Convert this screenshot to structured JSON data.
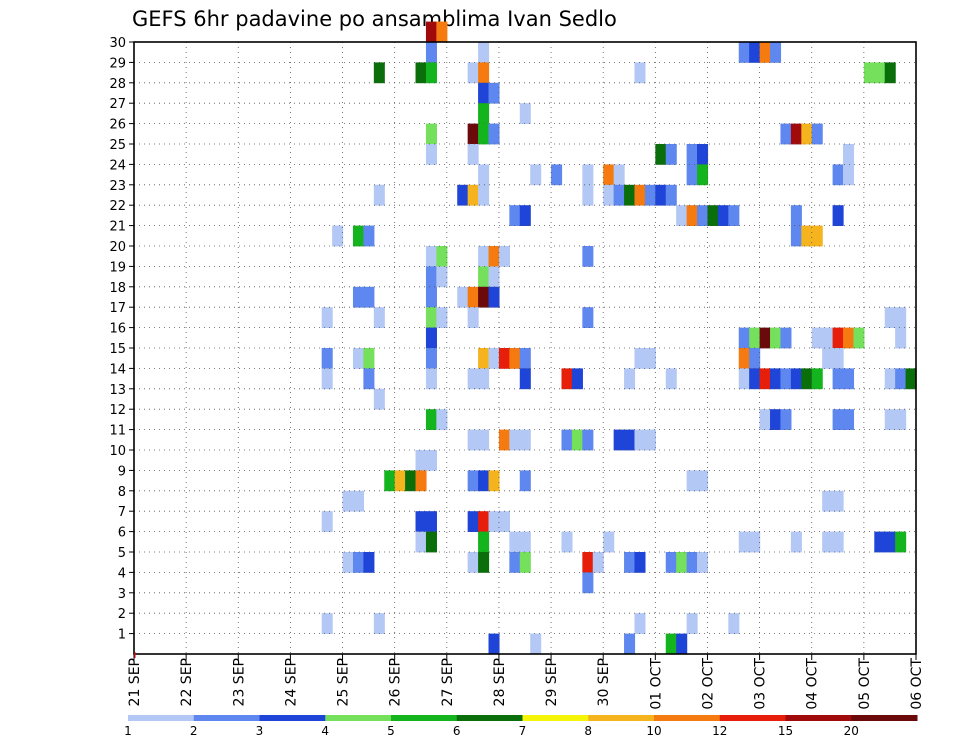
{
  "chart_data": {
    "type": "heatmap",
    "title": "GEFS 6hr padavine po ansamblima Ivan Sedlo",
    "xlabel": "",
    "ylabel": "",
    "y_ticks": [
      "1",
      "2",
      "3",
      "4",
      "5",
      "6",
      "7",
      "8",
      "9",
      "10",
      "11",
      "12",
      "13",
      "14",
      "15",
      "16",
      "17",
      "18",
      "19",
      "20",
      "21",
      "22",
      "23",
      "24",
      "25",
      "26",
      "27",
      "28",
      "29",
      "30"
    ],
    "x_ticks": [
      "21 SEP",
      "22 SEP",
      "23 SEP",
      "24 SEP",
      "25 SEP",
      "26 SEP",
      "27 SEP",
      "28 SEP",
      "29 SEP",
      "30 SEP",
      "01 OCT",
      "02 OCT",
      "03 OCT",
      "04 OCT",
      "05 OCT",
      "06 OCT"
    ],
    "x_range_days": [
      0,
      15
    ],
    "y_range": [
      0,
      30
    ],
    "grid": true,
    "legend": {
      "position": "bottom",
      "labels": [
        "1",
        "2",
        "3",
        "4",
        "5",
        "6",
        "7",
        "8",
        "10",
        "12",
        "15",
        "20"
      ],
      "colors": [
        "#b4c8f5",
        "#5f87f0",
        "#1e44d8",
        "#74e05c",
        "#14b41e",
        "#0a6e0a",
        "#f5f50a",
        "#f5b41e",
        "#f57a10",
        "#e61e0a",
        "#a00a0a",
        "#6a0a0a"
      ]
    },
    "cells": [
      {
        "m": 30,
        "d": 5.6,
        "v": 15
      },
      {
        "m": 30,
        "d": 5.8,
        "v": 10
      },
      {
        "m": 29,
        "d": 5.6,
        "v": 2
      },
      {
        "m": 29,
        "d": 6.6,
        "v": 1
      },
      {
        "m": 29,
        "d": 11.6,
        "v": 2
      },
      {
        "m": 29,
        "d": 11.8,
        "v": 3
      },
      {
        "m": 29,
        "d": 12.0,
        "v": 10
      },
      {
        "m": 29,
        "d": 12.2,
        "v": 2
      },
      {
        "m": 28,
        "d": 4.6,
        "v": 6
      },
      {
        "m": 28,
        "d": 5.4,
        "v": 6
      },
      {
        "m": 28,
        "d": 5.6,
        "v": 5
      },
      {
        "m": 28,
        "d": 6.4,
        "v": 1
      },
      {
        "m": 28,
        "d": 6.6,
        "v": 10
      },
      {
        "m": 28,
        "d": 9.6,
        "v": 1
      },
      {
        "m": 28,
        "d": 14.0,
        "v": 4
      },
      {
        "m": 28,
        "d": 14.2,
        "v": 4
      },
      {
        "m": 28,
        "d": 14.4,
        "v": 6
      },
      {
        "m": 27,
        "d": 6.6,
        "v": 3
      },
      {
        "m": 27,
        "d": 6.8,
        "v": 2
      },
      {
        "m": 26,
        "d": 6.6,
        "v": 5
      },
      {
        "m": 26,
        "d": 7.4,
        "v": 1
      },
      {
        "m": 25,
        "d": 5.6,
        "v": 4
      },
      {
        "m": 25,
        "d": 6.4,
        "v": 20
      },
      {
        "m": 25,
        "d": 6.6,
        "v": 5
      },
      {
        "m": 25,
        "d": 6.8,
        "v": 2
      },
      {
        "m": 25,
        "d": 12.4,
        "v": 2
      },
      {
        "m": 25,
        "d": 12.6,
        "v": 15
      },
      {
        "m": 25,
        "d": 12.8,
        "v": 8
      },
      {
        "m": 25,
        "d": 13.0,
        "v": 2
      },
      {
        "m": 24,
        "d": 5.6,
        "v": 1
      },
      {
        "m": 24,
        "d": 6.4,
        "v": 1
      },
      {
        "m": 24,
        "d": 10.0,
        "v": 6
      },
      {
        "m": 24,
        "d": 10.2,
        "v": 2
      },
      {
        "m": 24,
        "d": 10.6,
        "v": 2
      },
      {
        "m": 24,
        "d": 10.8,
        "v": 3
      },
      {
        "m": 24,
        "d": 13.6,
        "v": 1
      },
      {
        "m": 23,
        "d": 6.6,
        "v": 1
      },
      {
        "m": 23,
        "d": 7.6,
        "v": 1
      },
      {
        "m": 23,
        "d": 8.0,
        "v": 2
      },
      {
        "m": 23,
        "d": 8.6,
        "v": 1
      },
      {
        "m": 23,
        "d": 9.0,
        "v": 10
      },
      {
        "m": 23,
        "d": 9.2,
        "v": 1
      },
      {
        "m": 23,
        "d": 10.6,
        "v": 2
      },
      {
        "m": 23,
        "d": 10.8,
        "v": 5
      },
      {
        "m": 23,
        "d": 13.4,
        "v": 2
      },
      {
        "m": 23,
        "d": 13.6,
        "v": 1
      },
      {
        "m": 22,
        "d": 4.6,
        "v": 1
      },
      {
        "m": 22,
        "d": 6.2,
        "v": 3
      },
      {
        "m": 22,
        "d": 6.4,
        "v": 8
      },
      {
        "m": 22,
        "d": 6.6,
        "v": 1
      },
      {
        "m": 22,
        "d": 8.6,
        "v": 1
      },
      {
        "m": 22,
        "d": 9.0,
        "v": 1
      },
      {
        "m": 22,
        "d": 9.2,
        "v": 2
      },
      {
        "m": 22,
        "d": 9.4,
        "v": 6
      },
      {
        "m": 22,
        "d": 9.6,
        "v": 10
      },
      {
        "m": 22,
        "d": 9.8,
        "v": 2
      },
      {
        "m": 22,
        "d": 10.0,
        "v": 3
      },
      {
        "m": 22,
        "d": 10.2,
        "v": 2
      },
      {
        "m": 21,
        "d": 7.2,
        "v": 2
      },
      {
        "m": 21,
        "d": 7.4,
        "v": 3
      },
      {
        "m": 21,
        "d": 10.4,
        "v": 1
      },
      {
        "m": 21,
        "d": 10.6,
        "v": 10
      },
      {
        "m": 21,
        "d": 10.8,
        "v": 2
      },
      {
        "m": 21,
        "d": 11.0,
        "v": 6
      },
      {
        "m": 21,
        "d": 11.2,
        "v": 3
      },
      {
        "m": 21,
        "d": 11.4,
        "v": 2
      },
      {
        "m": 21,
        "d": 12.6,
        "v": 2
      },
      {
        "m": 21,
        "d": 13.4,
        "v": 3
      },
      {
        "m": 20,
        "d": 3.8,
        "v": 1
      },
      {
        "m": 20,
        "d": 4.2,
        "v": 5
      },
      {
        "m": 20,
        "d": 4.4,
        "v": 2
      },
      {
        "m": 20,
        "d": 12.6,
        "v": 2
      },
      {
        "m": 20,
        "d": 12.8,
        "v": 8
      },
      {
        "m": 20,
        "d": 13.0,
        "v": 8
      },
      {
        "m": 19,
        "d": 5.6,
        "v": 1
      },
      {
        "m": 19,
        "d": 5.8,
        "v": 4
      },
      {
        "m": 19,
        "d": 6.6,
        "v": 1
      },
      {
        "m": 19,
        "d": 6.8,
        "v": 10
      },
      {
        "m": 19,
        "d": 7.0,
        "v": 1
      },
      {
        "m": 19,
        "d": 8.6,
        "v": 2
      },
      {
        "m": 18,
        "d": 5.6,
        "v": 2
      },
      {
        "m": 18,
        "d": 5.8,
        "v": 1
      },
      {
        "m": 18,
        "d": 6.6,
        "v": 4
      },
      {
        "m": 18,
        "d": 6.8,
        "v": 1
      },
      {
        "m": 17,
        "d": 4.2,
        "v": 2
      },
      {
        "m": 17,
        "d": 4.4,
        "v": 2
      },
      {
        "m": 17,
        "d": 5.6,
        "v": 2
      },
      {
        "m": 17,
        "d": 6.2,
        "v": 1
      },
      {
        "m": 17,
        "d": 6.4,
        "v": 10
      },
      {
        "m": 17,
        "d": 6.6,
        "v": 20
      },
      {
        "m": 17,
        "d": 6.8,
        "v": 3
      },
      {
        "m": 16,
        "d": 3.6,
        "v": 1
      },
      {
        "m": 16,
        "d": 4.6,
        "v": 1
      },
      {
        "m": 16,
        "d": 5.6,
        "v": 4
      },
      {
        "m": 16,
        "d": 5.8,
        "v": 1
      },
      {
        "m": 16,
        "d": 6.4,
        "v": 1
      },
      {
        "m": 16,
        "d": 8.6,
        "v": 2
      },
      {
        "m": 16,
        "d": 14.4,
        "v": 1
      },
      {
        "m": 16,
        "d": 14.6,
        "v": 1
      },
      {
        "m": 15,
        "d": 5.6,
        "v": 3
      },
      {
        "m": 15,
        "d": 11.6,
        "v": 2
      },
      {
        "m": 15,
        "d": 11.8,
        "v": 4
      },
      {
        "m": 15,
        "d": 12.0,
        "v": 20
      },
      {
        "m": 15,
        "d": 12.2,
        "v": 4
      },
      {
        "m": 15,
        "d": 12.4,
        "v": 2
      },
      {
        "m": 15,
        "d": 13.0,
        "v": 1
      },
      {
        "m": 15,
        "d": 13.2,
        "v": 1
      },
      {
        "m": 15,
        "d": 13.4,
        "v": 12
      },
      {
        "m": 15,
        "d": 13.6,
        "v": 10
      },
      {
        "m": 15,
        "d": 13.8,
        "v": 4
      },
      {
        "m": 15,
        "d": 14.6,
        "v": 1
      },
      {
        "m": 14,
        "d": 3.6,
        "v": 2
      },
      {
        "m": 14,
        "d": 4.2,
        "v": 1
      },
      {
        "m": 14,
        "d": 4.4,
        "v": 4
      },
      {
        "m": 14,
        "d": 5.6,
        "v": 2
      },
      {
        "m": 14,
        "d": 6.6,
        "v": 8
      },
      {
        "m": 14,
        "d": 6.8,
        "v": 1
      },
      {
        "m": 14,
        "d": 7.0,
        "v": 12
      },
      {
        "m": 14,
        "d": 7.2,
        "v": 10
      },
      {
        "m": 14,
        "d": 7.4,
        "v": 2
      },
      {
        "m": 14,
        "d": 9.6,
        "v": 1
      },
      {
        "m": 14,
        "d": 9.8,
        "v": 1
      },
      {
        "m": 14,
        "d": 11.6,
        "v": 10
      },
      {
        "m": 14,
        "d": 11.8,
        "v": 2
      },
      {
        "m": 14,
        "d": 13.2,
        "v": 1
      },
      {
        "m": 14,
        "d": 13.4,
        "v": 1
      },
      {
        "m": 13,
        "d": 3.6,
        "v": 1
      },
      {
        "m": 13,
        "d": 4.4,
        "v": 2
      },
      {
        "m": 13,
        "d": 5.6,
        "v": 1
      },
      {
        "m": 13,
        "d": 6.4,
        "v": 1
      },
      {
        "m": 13,
        "d": 6.6,
        "v": 1
      },
      {
        "m": 13,
        "d": 7.4,
        "v": 3
      },
      {
        "m": 13,
        "d": 8.2,
        "v": 12
      },
      {
        "m": 13,
        "d": 8.4,
        "v": 3
      },
      {
        "m": 13,
        "d": 9.4,
        "v": 1
      },
      {
        "m": 13,
        "d": 10.2,
        "v": 1
      },
      {
        "m": 13,
        "d": 11.6,
        "v": 1
      },
      {
        "m": 13,
        "d": 11.8,
        "v": 3
      },
      {
        "m": 13,
        "d": 12.0,
        "v": 12
      },
      {
        "m": 13,
        "d": 12.2,
        "v": 3
      },
      {
        "m": 13,
        "d": 12.4,
        "v": 2
      },
      {
        "m": 13,
        "d": 12.6,
        "v": 3
      },
      {
        "m": 13,
        "d": 12.8,
        "v": 6
      },
      {
        "m": 13,
        "d": 13.0,
        "v": 5
      },
      {
        "m": 13,
        "d": 13.4,
        "v": 2
      },
      {
        "m": 13,
        "d": 13.6,
        "v": 2
      },
      {
        "m": 13,
        "d": 14.4,
        "v": 1
      },
      {
        "m": 13,
        "d": 14.6,
        "v": 2
      },
      {
        "m": 13,
        "d": 14.8,
        "v": 6
      },
      {
        "m": 12,
        "d": 4.6,
        "v": 1
      },
      {
        "m": 11,
        "d": 5.6,
        "v": 5
      },
      {
        "m": 11,
        "d": 5.8,
        "v": 1
      },
      {
        "m": 11,
        "d": 12.0,
        "v": 1
      },
      {
        "m": 11,
        "d": 12.2,
        "v": 3
      },
      {
        "m": 11,
        "d": 12.4,
        "v": 2
      },
      {
        "m": 11,
        "d": 13.4,
        "v": 2
      },
      {
        "m": 11,
        "d": 13.6,
        "v": 2
      },
      {
        "m": 11,
        "d": 14.4,
        "v": 1
      },
      {
        "m": 11,
        "d": 14.6,
        "v": 1
      },
      {
        "m": 10,
        "d": 6.4,
        "v": 1
      },
      {
        "m": 10,
        "d": 6.6,
        "v": 1
      },
      {
        "m": 10,
        "d": 7.0,
        "v": 10
      },
      {
        "m": 10,
        "d": 7.2,
        "v": 1
      },
      {
        "m": 10,
        "d": 7.4,
        "v": 1
      },
      {
        "m": 10,
        "d": 8.2,
        "v": 2
      },
      {
        "m": 10,
        "d": 8.4,
        "v": 4
      },
      {
        "m": 10,
        "d": 8.6,
        "v": 2
      },
      {
        "m": 10,
        "d": 9.2,
        "v": 3
      },
      {
        "m": 10,
        "d": 9.4,
        "v": 3
      },
      {
        "m": 10,
        "d": 9.6,
        "v": 1
      },
      {
        "m": 10,
        "d": 9.8,
        "v": 1
      },
      {
        "m": 9,
        "d": 5.4,
        "v": 1
      },
      {
        "m": 9,
        "d": 5.6,
        "v": 1
      },
      {
        "m": 8,
        "d": 4.8,
        "v": 5
      },
      {
        "m": 8,
        "d": 5.0,
        "v": 8
      },
      {
        "m": 8,
        "d": 5.2,
        "v": 6
      },
      {
        "m": 8,
        "d": 5.4,
        "v": 10
      },
      {
        "m": 8,
        "d": 6.4,
        "v": 2
      },
      {
        "m": 8,
        "d": 6.6,
        "v": 3
      },
      {
        "m": 8,
        "d": 6.8,
        "v": 8
      },
      {
        "m": 8,
        "d": 7.4,
        "v": 2
      },
      {
        "m": 8,
        "d": 10.6,
        "v": 1
      },
      {
        "m": 8,
        "d": 10.8,
        "v": 1
      },
      {
        "m": 7,
        "d": 4.0,
        "v": 1
      },
      {
        "m": 7,
        "d": 4.2,
        "v": 1
      },
      {
        "m": 7,
        "d": 13.2,
        "v": 1
      },
      {
        "m": 7,
        "d": 13.4,
        "v": 1
      },
      {
        "m": 6,
        "d": 3.6,
        "v": 1
      },
      {
        "m": 6,
        "d": 5.4,
        "v": 3
      },
      {
        "m": 6,
        "d": 5.6,
        "v": 3
      },
      {
        "m": 6,
        "d": 6.4,
        "v": 3
      },
      {
        "m": 6,
        "d": 6.6,
        "v": 12
      },
      {
        "m": 6,
        "d": 6.8,
        "v": 1
      },
      {
        "m": 6,
        "d": 7.0,
        "v": 1
      },
      {
        "m": 5,
        "d": 5.4,
        "v": 1
      },
      {
        "m": 5,
        "d": 5.6,
        "v": 6
      },
      {
        "m": 5,
        "d": 6.6,
        "v": 5
      },
      {
        "m": 5,
        "d": 7.2,
        "v": 1
      },
      {
        "m": 5,
        "d": 7.4,
        "v": 1
      },
      {
        "m": 5,
        "d": 8.2,
        "v": 1
      },
      {
        "m": 5,
        "d": 9.0,
        "v": 1
      },
      {
        "m": 5,
        "d": 11.6,
        "v": 1
      },
      {
        "m": 5,
        "d": 11.8,
        "v": 1
      },
      {
        "m": 5,
        "d": 12.6,
        "v": 1
      },
      {
        "m": 5,
        "d": 13.2,
        "v": 1
      },
      {
        "m": 5,
        "d": 13.4,
        "v": 1
      },
      {
        "m": 5,
        "d": 14.2,
        "v": 3
      },
      {
        "m": 5,
        "d": 14.4,
        "v": 3
      },
      {
        "m": 5,
        "d": 14.6,
        "v": 5
      },
      {
        "m": 4,
        "d": 4.0,
        "v": 1
      },
      {
        "m": 4,
        "d": 4.2,
        "v": 2
      },
      {
        "m": 4,
        "d": 4.4,
        "v": 3
      },
      {
        "m": 4,
        "d": 6.4,
        "v": 1
      },
      {
        "m": 4,
        "d": 6.6,
        "v": 6
      },
      {
        "m": 4,
        "d": 7.2,
        "v": 2
      },
      {
        "m": 4,
        "d": 7.4,
        "v": 4
      },
      {
        "m": 4,
        "d": 8.6,
        "v": 12
      },
      {
        "m": 4,
        "d": 8.8,
        "v": 1
      },
      {
        "m": 4,
        "d": 9.4,
        "v": 2
      },
      {
        "m": 4,
        "d": 9.6,
        "v": 3
      },
      {
        "m": 4,
        "d": 10.2,
        "v": 2
      },
      {
        "m": 4,
        "d": 10.4,
        "v": 4
      },
      {
        "m": 4,
        "d": 10.6,
        "v": 2
      },
      {
        "m": 4,
        "d": 10.8,
        "v": 1
      },
      {
        "m": 3,
        "d": 8.6,
        "v": 2
      },
      {
        "m": 1,
        "d": 3.6,
        "v": 1
      },
      {
        "m": 1,
        "d": 4.6,
        "v": 1
      },
      {
        "m": 1,
        "d": 9.6,
        "v": 1
      },
      {
        "m": 1,
        "d": 10.6,
        "v": 1
      },
      {
        "m": 1,
        "d": 11.4,
        "v": 1
      },
      {
        "m": 0,
        "d": 6.8,
        "v": 3
      },
      {
        "m": 0,
        "d": 7.6,
        "v": 1
      },
      {
        "m": 0,
        "d": 9.4,
        "v": 2
      },
      {
        "m": 0,
        "d": 10.2,
        "v": 5
      },
      {
        "m": 0,
        "d": 10.4,
        "v": 3
      }
    ]
  }
}
